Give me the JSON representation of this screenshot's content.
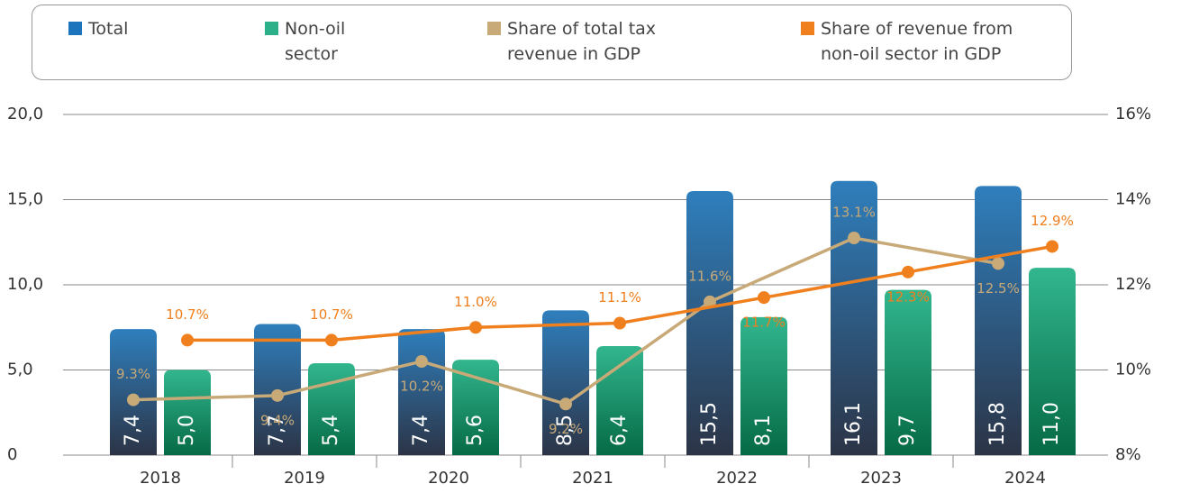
{
  "chart_data": {
    "type": "bar",
    "categories": [
      "2018",
      "2019",
      "2020",
      "2021",
      "2022",
      "2023",
      "2024"
    ],
    "ylim": [
      0,
      20
    ],
    "yticks": [
      0,
      {
        "value": 5,
        "label": "5,0"
      },
      {
        "value": 10,
        "label": "10,0"
      },
      {
        "value": 15,
        "label": "15,0"
      },
      {
        "value": 20,
        "label": "20,0"
      }
    ],
    "y2lim": [
      8,
      16
    ],
    "y2ticks": [
      {
        "value": 8,
        "label": "8%"
      },
      {
        "value": 10,
        "label": "10%"
      },
      {
        "value": 12,
        "label": "12%"
      },
      {
        "value": 14,
        "label": "14%"
      },
      {
        "value": 16,
        "label": "16%"
      }
    ],
    "grid": true,
    "legend": "top",
    "series": [
      {
        "name": "Total",
        "type": "bar",
        "color": "#1c75bc",
        "values": [
          7.4,
          7.7,
          7.4,
          8.5,
          15.5,
          16.1,
          15.8
        ],
        "value_labels": [
          "7,4",
          "7,7",
          "7,4",
          "8,5",
          "15,5",
          "16,1",
          "15,8"
        ]
      },
      {
        "name": "Non-oil sector",
        "type": "bar",
        "color": "#2bb08a",
        "values": [
          5.0,
          5.4,
          5.6,
          6.4,
          8.1,
          9.7,
          11.0
        ],
        "value_labels": [
          "5,0",
          "5,4",
          "5,6",
          "6,4",
          "8,1",
          "9,7",
          "11,0"
        ]
      },
      {
        "name": "Share of total tax revenue in GDP",
        "type": "line",
        "axis": "y2",
        "color": "#c8a978",
        "values": [
          9.3,
          9.4,
          10.2,
          9.2,
          11.6,
          13.1,
          12.5
        ],
        "value_labels": [
          "9.3%",
          "9.4%",
          "10.2%",
          "9.2%",
          "11.6%",
          "13.1%",
          "12.5%"
        ]
      },
      {
        "name": "Share of revenue from non-oil sector in GDP",
        "type": "line",
        "axis": "y2",
        "color": "#f07f1e",
        "values": [
          10.7,
          10.7,
          11.0,
          11.1,
          11.7,
          12.3,
          12.9
        ],
        "value_labels": [
          "10.7%",
          "10.7%",
          "11.0%",
          "11.1%",
          "11.7%",
          "12.3%",
          "12.9%"
        ]
      }
    ]
  }
}
